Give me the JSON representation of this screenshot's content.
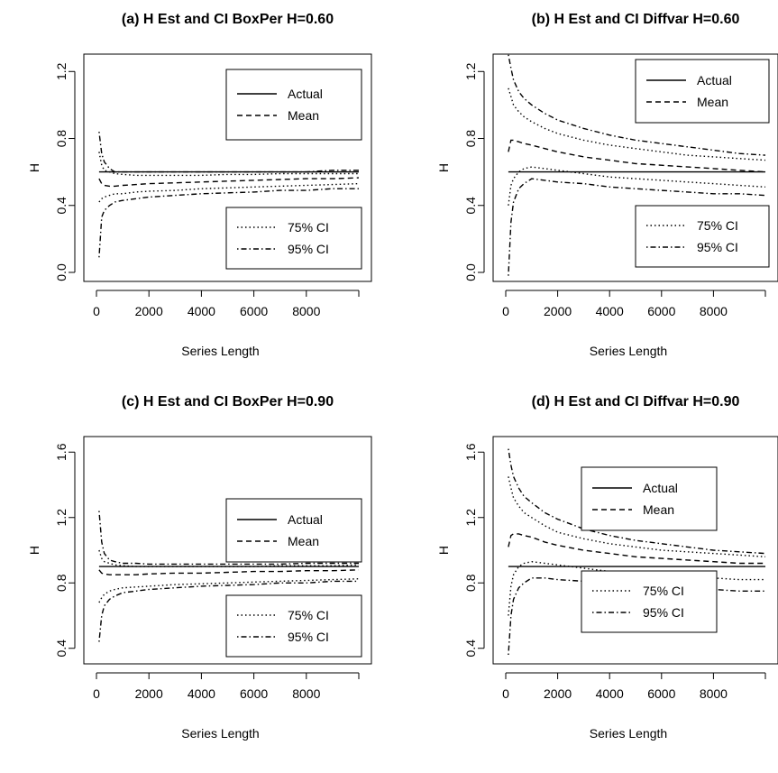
{
  "chart_data": [
    {
      "type": "line",
      "title": "(a) H Est and CI BoxPer H=0.60",
      "xlabel": "Series Length",
      "ylabel": "H",
      "xlim": [
        0,
        10000
      ],
      "ylim": [
        0.0,
        1.25
      ],
      "xticks": [
        0,
        2000,
        4000,
        6000,
        8000
      ],
      "yticks": [
        0.0,
        0.4,
        0.8,
        1.2
      ],
      "xtick_labels": [
        "0",
        "2000",
        "4000",
        "6000",
        "8000"
      ],
      "ytick_labels": [
        "0.0",
        "0.4",
        "0.8",
        "1.2"
      ],
      "legends": [
        {
          "position": "upper-right",
          "entries": [
            "Actual",
            "Mean"
          ]
        },
        {
          "position": "lower-right",
          "entries": [
            "75% CI",
            "95% CI"
          ]
        }
      ],
      "x": [
        100,
        200,
        300,
        500,
        700,
        1000,
        1500,
        2000,
        3000,
        4000,
        5000,
        6000,
        7000,
        8000,
        9000,
        10000
      ],
      "series": [
        {
          "name": "Actual",
          "style": "solid",
          "values": [
            0.6,
            0.6,
            0.6,
            0.6,
            0.6,
            0.6,
            0.6,
            0.6,
            0.6,
            0.6,
            0.6,
            0.6,
            0.6,
            0.6,
            0.6,
            0.6
          ]
        },
        {
          "name": "Mean",
          "style": "dashed",
          "values": [
            0.56,
            0.53,
            0.52,
            0.515,
            0.515,
            0.52,
            0.525,
            0.53,
            0.535,
            0.54,
            0.545,
            0.55,
            0.555,
            0.56,
            0.56,
            0.565
          ]
        },
        {
          "name": "75% CI upper",
          "style": "dotted",
          "values": [
            0.72,
            0.64,
            0.61,
            0.6,
            0.59,
            0.585,
            0.58,
            0.58,
            0.58,
            0.58,
            0.585,
            0.585,
            0.59,
            0.59,
            0.59,
            0.59
          ]
        },
        {
          "name": "75% CI lower",
          "style": "dotted",
          "values": [
            0.42,
            0.44,
            0.45,
            0.46,
            0.47,
            0.47,
            0.48,
            0.485,
            0.49,
            0.5,
            0.505,
            0.51,
            0.515,
            0.52,
            0.525,
            0.53
          ]
        },
        {
          "name": "95% CI upper",
          "style": "dotdash",
          "values": [
            0.84,
            0.71,
            0.66,
            0.62,
            0.6,
            0.6,
            0.6,
            0.6,
            0.6,
            0.6,
            0.6,
            0.6,
            0.6,
            0.6,
            0.61,
            0.61
          ]
        },
        {
          "name": "95% CI lower",
          "style": "dotdash",
          "values": [
            0.09,
            0.33,
            0.37,
            0.4,
            0.42,
            0.43,
            0.44,
            0.45,
            0.46,
            0.47,
            0.475,
            0.48,
            0.49,
            0.49,
            0.5,
            0.5
          ]
        }
      ]
    },
    {
      "type": "line",
      "title": "(b) H Est and CI Diffvar H=0.60",
      "xlabel": "Series Length",
      "ylabel": "H",
      "xlim": [
        0,
        10000
      ],
      "ylim": [
        0.0,
        1.25
      ],
      "xticks": [
        0,
        2000,
        4000,
        6000,
        8000
      ],
      "yticks": [
        0.0,
        0.4,
        0.8,
        1.2
      ],
      "xtick_labels": [
        "0",
        "2000",
        "4000",
        "6000",
        "8000"
      ],
      "ytick_labels": [
        "0.0",
        "0.4",
        "0.8",
        "1.2"
      ],
      "legends": [
        {
          "position": "upper-right",
          "entries": [
            "Actual",
            "Mean"
          ]
        },
        {
          "position": "lower-right",
          "entries": [
            "75% CI",
            "95% CI"
          ]
        }
      ],
      "x": [
        100,
        200,
        300,
        500,
        700,
        1000,
        1500,
        2000,
        3000,
        4000,
        5000,
        6000,
        7000,
        8000,
        9000,
        10000
      ],
      "series": [
        {
          "name": "Actual",
          "style": "solid",
          "values": [
            0.6,
            0.6,
            0.6,
            0.6,
            0.6,
            0.6,
            0.6,
            0.6,
            0.6,
            0.6,
            0.6,
            0.6,
            0.6,
            0.6,
            0.6,
            0.6
          ]
        },
        {
          "name": "Mean",
          "style": "dashed",
          "values": [
            0.72,
            0.79,
            0.79,
            0.78,
            0.77,
            0.76,
            0.74,
            0.72,
            0.69,
            0.67,
            0.65,
            0.64,
            0.63,
            0.62,
            0.61,
            0.6
          ]
        },
        {
          "name": "75% CI upper",
          "style": "dotted",
          "values": [
            1.1,
            1.05,
            1.0,
            0.96,
            0.93,
            0.9,
            0.86,
            0.83,
            0.79,
            0.76,
            0.74,
            0.72,
            0.7,
            0.69,
            0.68,
            0.67
          ]
        },
        {
          "name": "75% CI lower",
          "style": "dotted",
          "values": [
            0.4,
            0.52,
            0.56,
            0.6,
            0.62,
            0.63,
            0.62,
            0.61,
            0.59,
            0.57,
            0.56,
            0.55,
            0.54,
            0.53,
            0.52,
            0.51
          ]
        },
        {
          "name": "95% CI upper",
          "style": "dotdash",
          "values": [
            1.3,
            1.22,
            1.15,
            1.08,
            1.04,
            1.0,
            0.95,
            0.91,
            0.86,
            0.82,
            0.79,
            0.77,
            0.75,
            0.73,
            0.71,
            0.7
          ]
        },
        {
          "name": "95% CI lower",
          "style": "dotdash",
          "values": [
            -0.02,
            0.3,
            0.42,
            0.5,
            0.53,
            0.56,
            0.55,
            0.54,
            0.53,
            0.51,
            0.5,
            0.49,
            0.48,
            0.47,
            0.47,
            0.46
          ]
        }
      ]
    },
    {
      "type": "line",
      "title": "(c) H Est and CI BoxPer H=0.90",
      "xlabel": "Series Length",
      "ylabel": "H",
      "xlim": [
        0,
        10000
      ],
      "ylim": [
        0.36,
        1.64
      ],
      "xticks": [
        0,
        2000,
        4000,
        6000,
        8000
      ],
      "yticks": [
        0.4,
        0.8,
        1.2,
        1.6
      ],
      "xtick_labels": [
        "0",
        "2000",
        "4000",
        "6000",
        "8000"
      ],
      "ytick_labels": [
        "0.4",
        "0.8",
        "1.2",
        "1.6"
      ],
      "legends": [
        {
          "position": "upper-right",
          "entries": [
            "Actual",
            "Mean"
          ]
        },
        {
          "position": "lower-right",
          "entries": [
            "75% CI",
            "95% CI"
          ]
        }
      ],
      "x": [
        100,
        200,
        300,
        500,
        700,
        1000,
        1500,
        2000,
        3000,
        4000,
        5000,
        6000,
        7000,
        8000,
        9000,
        10000
      ],
      "series": [
        {
          "name": "Actual",
          "style": "solid",
          "values": [
            0.9,
            0.9,
            0.9,
            0.9,
            0.9,
            0.9,
            0.9,
            0.9,
            0.9,
            0.9,
            0.9,
            0.9,
            0.9,
            0.9,
            0.9,
            0.9
          ]
        },
        {
          "name": "Mean",
          "style": "dashed",
          "values": [
            0.88,
            0.86,
            0.855,
            0.85,
            0.85,
            0.85,
            0.85,
            0.855,
            0.86,
            0.86,
            0.865,
            0.87,
            0.87,
            0.875,
            0.875,
            0.88
          ]
        },
        {
          "name": "75% CI upper",
          "style": "dotted",
          "values": [
            1.0,
            0.95,
            0.93,
            0.92,
            0.91,
            0.905,
            0.9,
            0.9,
            0.9,
            0.9,
            0.9,
            0.9,
            0.905,
            0.905,
            0.905,
            0.91
          ]
        },
        {
          "name": "75% CI lower",
          "style": "dotted",
          "values": [
            0.68,
            0.71,
            0.73,
            0.75,
            0.76,
            0.77,
            0.775,
            0.78,
            0.79,
            0.795,
            0.8,
            0.805,
            0.81,
            0.815,
            0.82,
            0.825
          ]
        },
        {
          "name": "95% CI upper",
          "style": "dotdash",
          "values": [
            1.24,
            1.05,
            0.98,
            0.94,
            0.93,
            0.92,
            0.92,
            0.915,
            0.915,
            0.915,
            0.915,
            0.915,
            0.915,
            0.92,
            0.92,
            0.92
          ]
        },
        {
          "name": "95% CI lower",
          "style": "dotdash",
          "values": [
            0.44,
            0.6,
            0.66,
            0.7,
            0.72,
            0.74,
            0.75,
            0.76,
            0.77,
            0.78,
            0.785,
            0.79,
            0.8,
            0.8,
            0.81,
            0.81
          ]
        }
      ]
    },
    {
      "type": "line",
      "title": "(d) H Est and CI Diffvar H=0.90",
      "xlabel": "Series Length",
      "ylabel": "H",
      "xlim": [
        0,
        10000
      ],
      "ylim": [
        0.36,
        1.64
      ],
      "xticks": [
        0,
        2000,
        4000,
        6000,
        8000
      ],
      "yticks": [
        0.4,
        0.8,
        1.2,
        1.6
      ],
      "xtick_labels": [
        "0",
        "2000",
        "4000",
        "6000",
        "8000"
      ],
      "ytick_labels": [
        "0.4",
        "0.8",
        "1.2",
        "1.6"
      ],
      "legends": [
        {
          "position": "upper-left",
          "entries": [
            "Actual",
            "Mean"
          ]
        },
        {
          "position": "lower-left",
          "entries": [
            "75% CI",
            "95% CI"
          ]
        }
      ],
      "x": [
        100,
        200,
        300,
        500,
        700,
        1000,
        1500,
        2000,
        3000,
        4000,
        5000,
        6000,
        7000,
        8000,
        9000,
        10000
      ],
      "series": [
        {
          "name": "Actual",
          "style": "solid",
          "values": [
            0.9,
            0.9,
            0.9,
            0.9,
            0.9,
            0.9,
            0.9,
            0.9,
            0.9,
            0.9,
            0.9,
            0.9,
            0.9,
            0.9,
            0.9,
            0.9
          ]
        },
        {
          "name": "Mean",
          "style": "dashed",
          "values": [
            1.02,
            1.09,
            1.1,
            1.1,
            1.09,
            1.08,
            1.05,
            1.03,
            1.0,
            0.98,
            0.96,
            0.95,
            0.94,
            0.93,
            0.92,
            0.92
          ]
        },
        {
          "name": "75% CI upper",
          "style": "dotted",
          "values": [
            1.45,
            1.38,
            1.32,
            1.27,
            1.23,
            1.2,
            1.15,
            1.11,
            1.07,
            1.04,
            1.02,
            1.0,
            0.99,
            0.98,
            0.97,
            0.96
          ]
        },
        {
          "name": "75% CI lower",
          "style": "dotted",
          "values": [
            0.6,
            0.78,
            0.85,
            0.9,
            0.92,
            0.93,
            0.92,
            0.91,
            0.89,
            0.87,
            0.86,
            0.85,
            0.84,
            0.83,
            0.82,
            0.82
          ]
        },
        {
          "name": "95% CI upper",
          "style": "dotdash",
          "values": [
            1.62,
            1.52,
            1.45,
            1.38,
            1.33,
            1.29,
            1.23,
            1.19,
            1.13,
            1.09,
            1.06,
            1.04,
            1.02,
            1.0,
            0.99,
            0.98
          ]
        },
        {
          "name": "95% CI lower",
          "style": "dotdash",
          "values": [
            0.36,
            0.6,
            0.7,
            0.77,
            0.8,
            0.83,
            0.83,
            0.82,
            0.81,
            0.79,
            0.78,
            0.77,
            0.76,
            0.76,
            0.75,
            0.75
          ]
        }
      ]
    }
  ]
}
